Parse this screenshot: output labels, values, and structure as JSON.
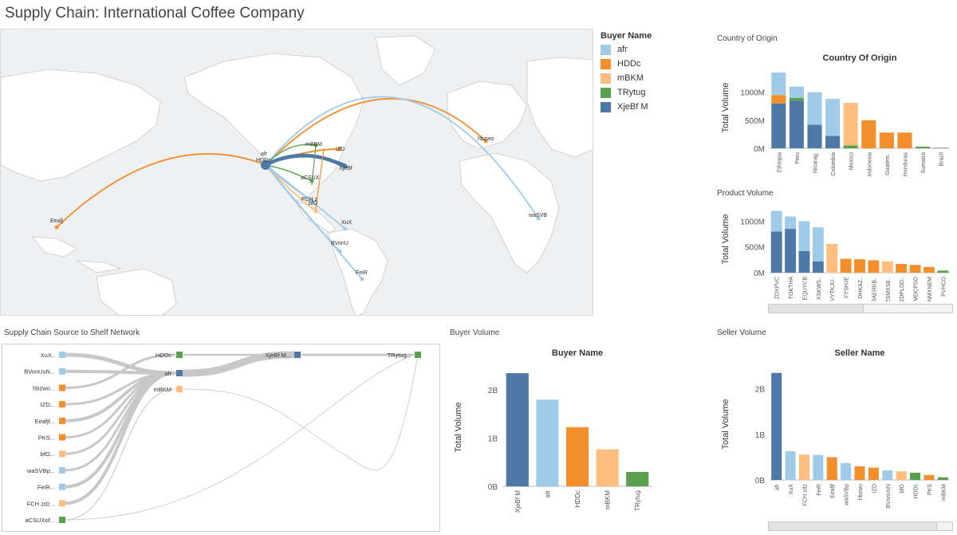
{
  "title": "Supply Chain: International Coffee Company",
  "map": {
    "legend_title": "Buyer Name",
    "legend": [
      {
        "name": "afr",
        "color": "#a0cbe8"
      },
      {
        "name": "HDDc",
        "color": "#f28e2b"
      },
      {
        "name": "mBKM",
        "color": "#ffbe7d"
      },
      {
        "name": "TRytug",
        "color": "#59a14f"
      },
      {
        "name": "XjeBf M",
        "color": "#4e79a7"
      }
    ],
    "labels": {
      "afr": "afr",
      "hddc": "HDDc",
      "mbkm": "mBKM",
      "izd": "IZD",
      "xjebf": "XjeBf",
      "acsux": "aCSUX",
      "fch": "FCH z",
      "bfo": "bfO",
      "xux": "XuX",
      "bvonu": "BVonU",
      "feir": "FeiR",
      "eeafj": "Eeafj",
      "hbzwo": "hbzwo",
      "wasvb": "waSVB"
    }
  },
  "sections": {
    "network": "Supply Chain Source to Shelf Network",
    "buyer": "Buyer Volume",
    "seller": "Seller Volume",
    "origin": "Country of Origin",
    "product": "Product Volume"
  },
  "network": {
    "sources": [
      "XuX..",
      "BVonUsN...",
      "hbzwo...",
      "IZD...",
      "Eeafjf...",
      "PKS...",
      "bfO...",
      "waSVBp...",
      "FeiR...",
      "FCH zdz...",
      "aCSUXof..."
    ],
    "buyers": [
      "HDDc",
      "afr",
      "mBKM"
    ],
    "sellers": [
      "XjeBf M...",
      "TRytug..."
    ]
  },
  "colors": {
    "afr": "#a0cbe8",
    "HDDc": "#f28e2b",
    "mBKM": "#ffbe7d",
    "TRytug": "#59a14f",
    "XjeBf": "#4e79a7"
  },
  "chart_data": [
    {
      "id": "origin",
      "type": "bar",
      "title": "Country Of Origin",
      "ylabel": "Total Volume",
      "yticks": [
        "0M",
        "500M",
        "1000M"
      ],
      "ylim": [
        0,
        1450
      ],
      "categories": [
        "Ethiopia",
        "Peru",
        "Nicarag.",
        "Colombia",
        "Mexico",
        "Indonesia",
        "Guatem..",
        "Honduras",
        "Sumatra",
        "Brazil"
      ],
      "series": [
        {
          "name": "XjeBf M",
          "values": [
            800,
            850,
            420,
            220,
            0,
            0,
            0,
            0,
            0,
            0
          ]
        },
        {
          "name": "TRytug",
          "values": [
            0,
            50,
            0,
            0,
            50,
            0,
            0,
            0,
            30,
            10
          ]
        },
        {
          "name": "HDDc",
          "values": [
            150,
            0,
            0,
            0,
            0,
            500,
            280,
            280,
            0,
            0
          ]
        },
        {
          "name": "mBKM",
          "values": [
            0,
            0,
            0,
            0,
            760,
            0,
            0,
            0,
            0,
            0
          ]
        },
        {
          "name": "afr",
          "values": [
            400,
            200,
            580,
            660,
            0,
            0,
            0,
            0,
            0,
            0
          ]
        }
      ]
    },
    {
      "id": "product",
      "type": "bar",
      "title": "",
      "ylabel": "Total Volume",
      "yticks": [
        "0M",
        "500M",
        "1000M"
      ],
      "ylim": [
        0,
        1300
      ],
      "categories": [
        "ZDXPVC",
        "TOKTHA",
        "EQUYCB",
        "XSKWS..",
        "VYTKJU..",
        "FYSHJE",
        "DHKAZ..",
        "BAERKB..",
        "ZSMXSE..",
        "ZDPLDD..",
        "MDCPSO",
        "NMXNEM",
        "PVHCO"
      ],
      "series": [
        {
          "name": "XjeBf M",
          "values": [
            800,
            850,
            420,
            220,
            0,
            0,
            0,
            0,
            0,
            0,
            0,
            0,
            0
          ]
        },
        {
          "name": "HDDc",
          "values": [
            0,
            0,
            0,
            0,
            0,
            270,
            260,
            240,
            0,
            170,
            150,
            110,
            0
          ]
        },
        {
          "name": "mBKM",
          "values": [
            0,
            0,
            0,
            0,
            560,
            0,
            0,
            0,
            220,
            0,
            0,
            0,
            0
          ]
        },
        {
          "name": "TRytug",
          "values": [
            0,
            0,
            0,
            0,
            0,
            0,
            0,
            0,
            0,
            0,
            0,
            0,
            40
          ]
        },
        {
          "name": "afr",
          "values": [
            400,
            240,
            580,
            660,
            0,
            0,
            0,
            0,
            0,
            0,
            0,
            0,
            0
          ]
        }
      ]
    },
    {
      "id": "buyer",
      "type": "bar",
      "title": "Buyer Name",
      "ylabel": "Total Volume",
      "yticks": [
        "0B",
        "1B",
        "2B"
      ],
      "ylim": [
        0,
        2.45
      ],
      "categories": [
        "XjeBf M",
        "afr",
        "HDDc",
        "mBKM",
        "TRytug"
      ],
      "values": [
        2.35,
        1.8,
        1.23,
        0.77,
        0.3
      ],
      "colors": [
        "#4e79a7",
        "#a0cbe8",
        "#f28e2b",
        "#ffbe7d",
        "#59a14f"
      ]
    },
    {
      "id": "seller",
      "type": "bar",
      "title": "Seller Name",
      "ylabel": "Total Volume",
      "yticks": [
        "0B",
        "1B",
        "2B"
      ],
      "ylim": [
        0,
        2.45
      ],
      "categories": [
        "afr",
        "XuX",
        "FCH zdz",
        "FeiR",
        "Eeafjf",
        "waSVBp",
        "hbzwo",
        "IZD",
        "BVonUsN",
        "bfO",
        "HDDc",
        "PKS",
        "mBKM"
      ],
      "values": [
        2.35,
        0.63,
        0.56,
        0.55,
        0.5,
        0.37,
        0.3,
        0.27,
        0.21,
        0.19,
        0.16,
        0.11,
        0.06
      ],
      "colors": [
        "#4e79a7",
        "#a0cbe8",
        "#ffbe7d",
        "#a0cbe8",
        "#f28e2b",
        "#a0cbe8",
        "#f28e2b",
        "#f28e2b",
        "#a0cbe8",
        "#ffbe7d",
        "#59a14f",
        "#f28e2b",
        "#59a14f"
      ]
    }
  ]
}
